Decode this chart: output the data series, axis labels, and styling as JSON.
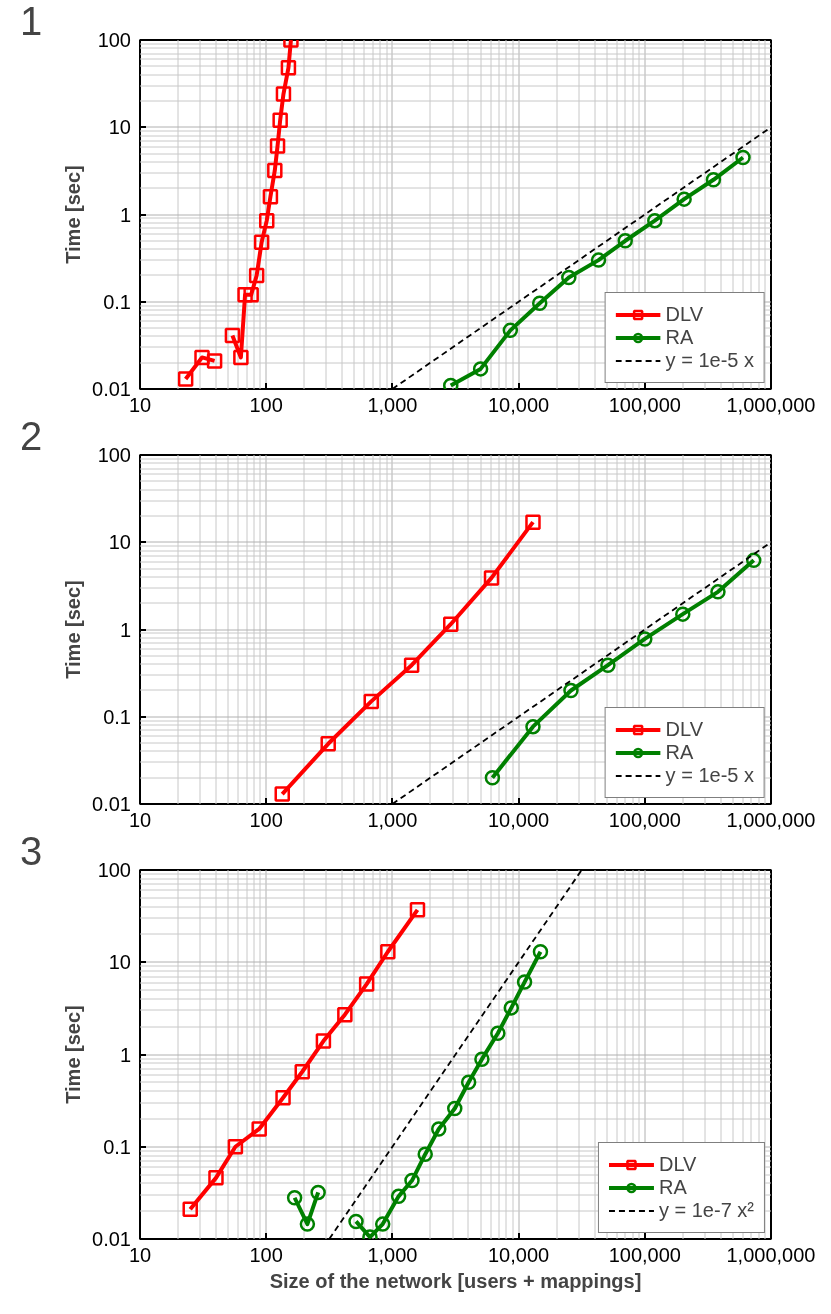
{
  "chart_data": [
    {
      "type": "line",
      "title": "1",
      "ylabel": "Time [sec]",
      "log": "xy",
      "grid": true,
      "legend": "bottom right",
      "xlim": [
        10,
        1000000
      ],
      "ylim": [
        0.01,
        100
      ],
      "xticks": [
        10,
        100,
        {
          "value": 1000,
          "label": "1,000"
        },
        {
          "value": 10000,
          "label": "10,000"
        },
        {
          "value": 100000,
          "label": "100,000"
        },
        {
          "value": 1000000,
          "label": "1,000,000"
        }
      ],
      "yticks": [
        0.01,
        0.1,
        1,
        10,
        100
      ],
      "series": [
        {
          "name": "DLV",
          "color": "#ff0000",
          "marker": "square",
          "line_style": "solid",
          "x": [
            23,
            31,
            39,
            45,
            54,
            63,
            68,
            76,
            84,
            92,
            101,
            108,
            117,
            123,
            129,
            137,
            150,
            157
          ],
          "values": [
            0.013,
            0.023,
            0.021,
            null,
            0.041,
            0.023,
            0.12,
            0.12,
            0.2,
            0.48,
            0.85,
            1.6,
            3.2,
            6.1,
            12,
            24,
            48,
            100
          ]
        },
        {
          "name": "RA",
          "color": "#008000",
          "marker": "circle",
          "line_style": "solid",
          "x": [
            2900,
            5000,
            8600,
            14700,
            25000,
            43000,
            70000,
            120000,
            205000,
            350000,
            600000
          ],
          "values": [
            0.011,
            0.017,
            0.047,
            0.096,
            0.19,
            0.3,
            0.5,
            0.85,
            1.5,
            2.5,
            4.5
          ]
        },
        {
          "name": "y = 1e-5 x",
          "type": "line",
          "color": "#000000",
          "marker": "none",
          "line_style": "dashed",
          "x": [
            1000,
            1000000
          ],
          "values": [
            0.01,
            10
          ]
        }
      ]
    },
    {
      "type": "line",
      "title": "2",
      "ylabel": "Time [sec]",
      "log": "xy",
      "grid": true,
      "legend": "bottom right",
      "xlim": [
        10,
        1000000
      ],
      "ylim": [
        0.01,
        100
      ],
      "xticks": [
        10,
        100,
        {
          "value": 1000,
          "label": "1,000"
        },
        {
          "value": 10000,
          "label": "10,000"
        },
        {
          "value": 100000,
          "label": "100,000"
        },
        {
          "value": 1000000,
          "label": "1,000,000"
        }
      ],
      "yticks": [
        0.01,
        0.1,
        1,
        10,
        100
      ],
      "series": [
        {
          "name": "DLV",
          "color": "#ff0000",
          "marker": "square",
          "line_style": "solid",
          "x": [
            134,
            310,
            680,
            1420,
            2900,
            6100,
            13000
          ],
          "values": [
            0.013,
            0.049,
            0.15,
            0.39,
            1.15,
            3.9,
            17
          ]
        },
        {
          "name": "RA",
          "color": "#008000",
          "marker": "circle",
          "line_style": "solid",
          "x": [
            6200,
            13000,
            26000,
            51000,
            100000,
            200000,
            380000,
            730000
          ],
          "values": [
            0.02,
            0.077,
            0.2,
            0.39,
            0.78,
            1.5,
            2.7,
            6.2
          ]
        },
        {
          "name": "y = 1e-5 x",
          "type": "line",
          "color": "#000000",
          "marker": "none",
          "line_style": "dashed",
          "x": [
            1000,
            1000000
          ],
          "values": [
            0.01,
            10
          ]
        }
      ]
    },
    {
      "type": "line",
      "title": "3",
      "xlabel": "Size of the network [users + mappings]",
      "ylabel": "Time [sec]",
      "log": "xy",
      "grid": true,
      "legend": "bottom right",
      "xlim": [
        10,
        1000000
      ],
      "ylim": [
        0.01,
        100
      ],
      "xticks": [
        10,
        100,
        {
          "value": 1000,
          "label": "1,000"
        },
        {
          "value": 10000,
          "label": "10,000"
        },
        {
          "value": 100000,
          "label": "100,000"
        },
        {
          "value": 1000000,
          "label": "1,000,000"
        }
      ],
      "yticks": [
        0.01,
        0.1,
        1,
        10,
        100
      ],
      "series": [
        {
          "name": "DLV",
          "color": "#ff0000",
          "marker": "square",
          "line_style": "solid",
          "x": [
            25,
            40,
            57,
            88,
            136,
            193,
            284,
            420,
            625,
            920,
            1580
          ],
          "values": [
            0.021,
            0.046,
            0.1,
            0.156,
            0.34,
            0.65,
            1.4,
            2.7,
            5.8,
            13,
            37
          ]
        },
        {
          "name": "RA",
          "color": "#008000",
          "marker": "circle",
          "line_style": "solid",
          "x": [
            168,
            212,
            258,
            360,
            515,
            664,
            838,
            1120,
            1430,
            1820,
            2330,
            3120,
            4020,
            5120,
            6850,
            8750,
            11150,
            14900
          ],
          "values": [
            0.028,
            0.0145,
            0.032,
            null,
            0.0155,
            0.0105,
            0.0145,
            0.029,
            0.043,
            0.083,
            0.156,
            0.26,
            0.5,
            0.89,
            1.7,
            3.2,
            6.1,
            13
          ]
        },
        {
          "name": "y = 1e-7 x²",
          "type": "line",
          "color": "#000000",
          "marker": "none",
          "line_style": "dashed",
          "x": [
            316,
            31600
          ],
          "values": [
            0.01,
            100
          ]
        }
      ]
    }
  ]
}
